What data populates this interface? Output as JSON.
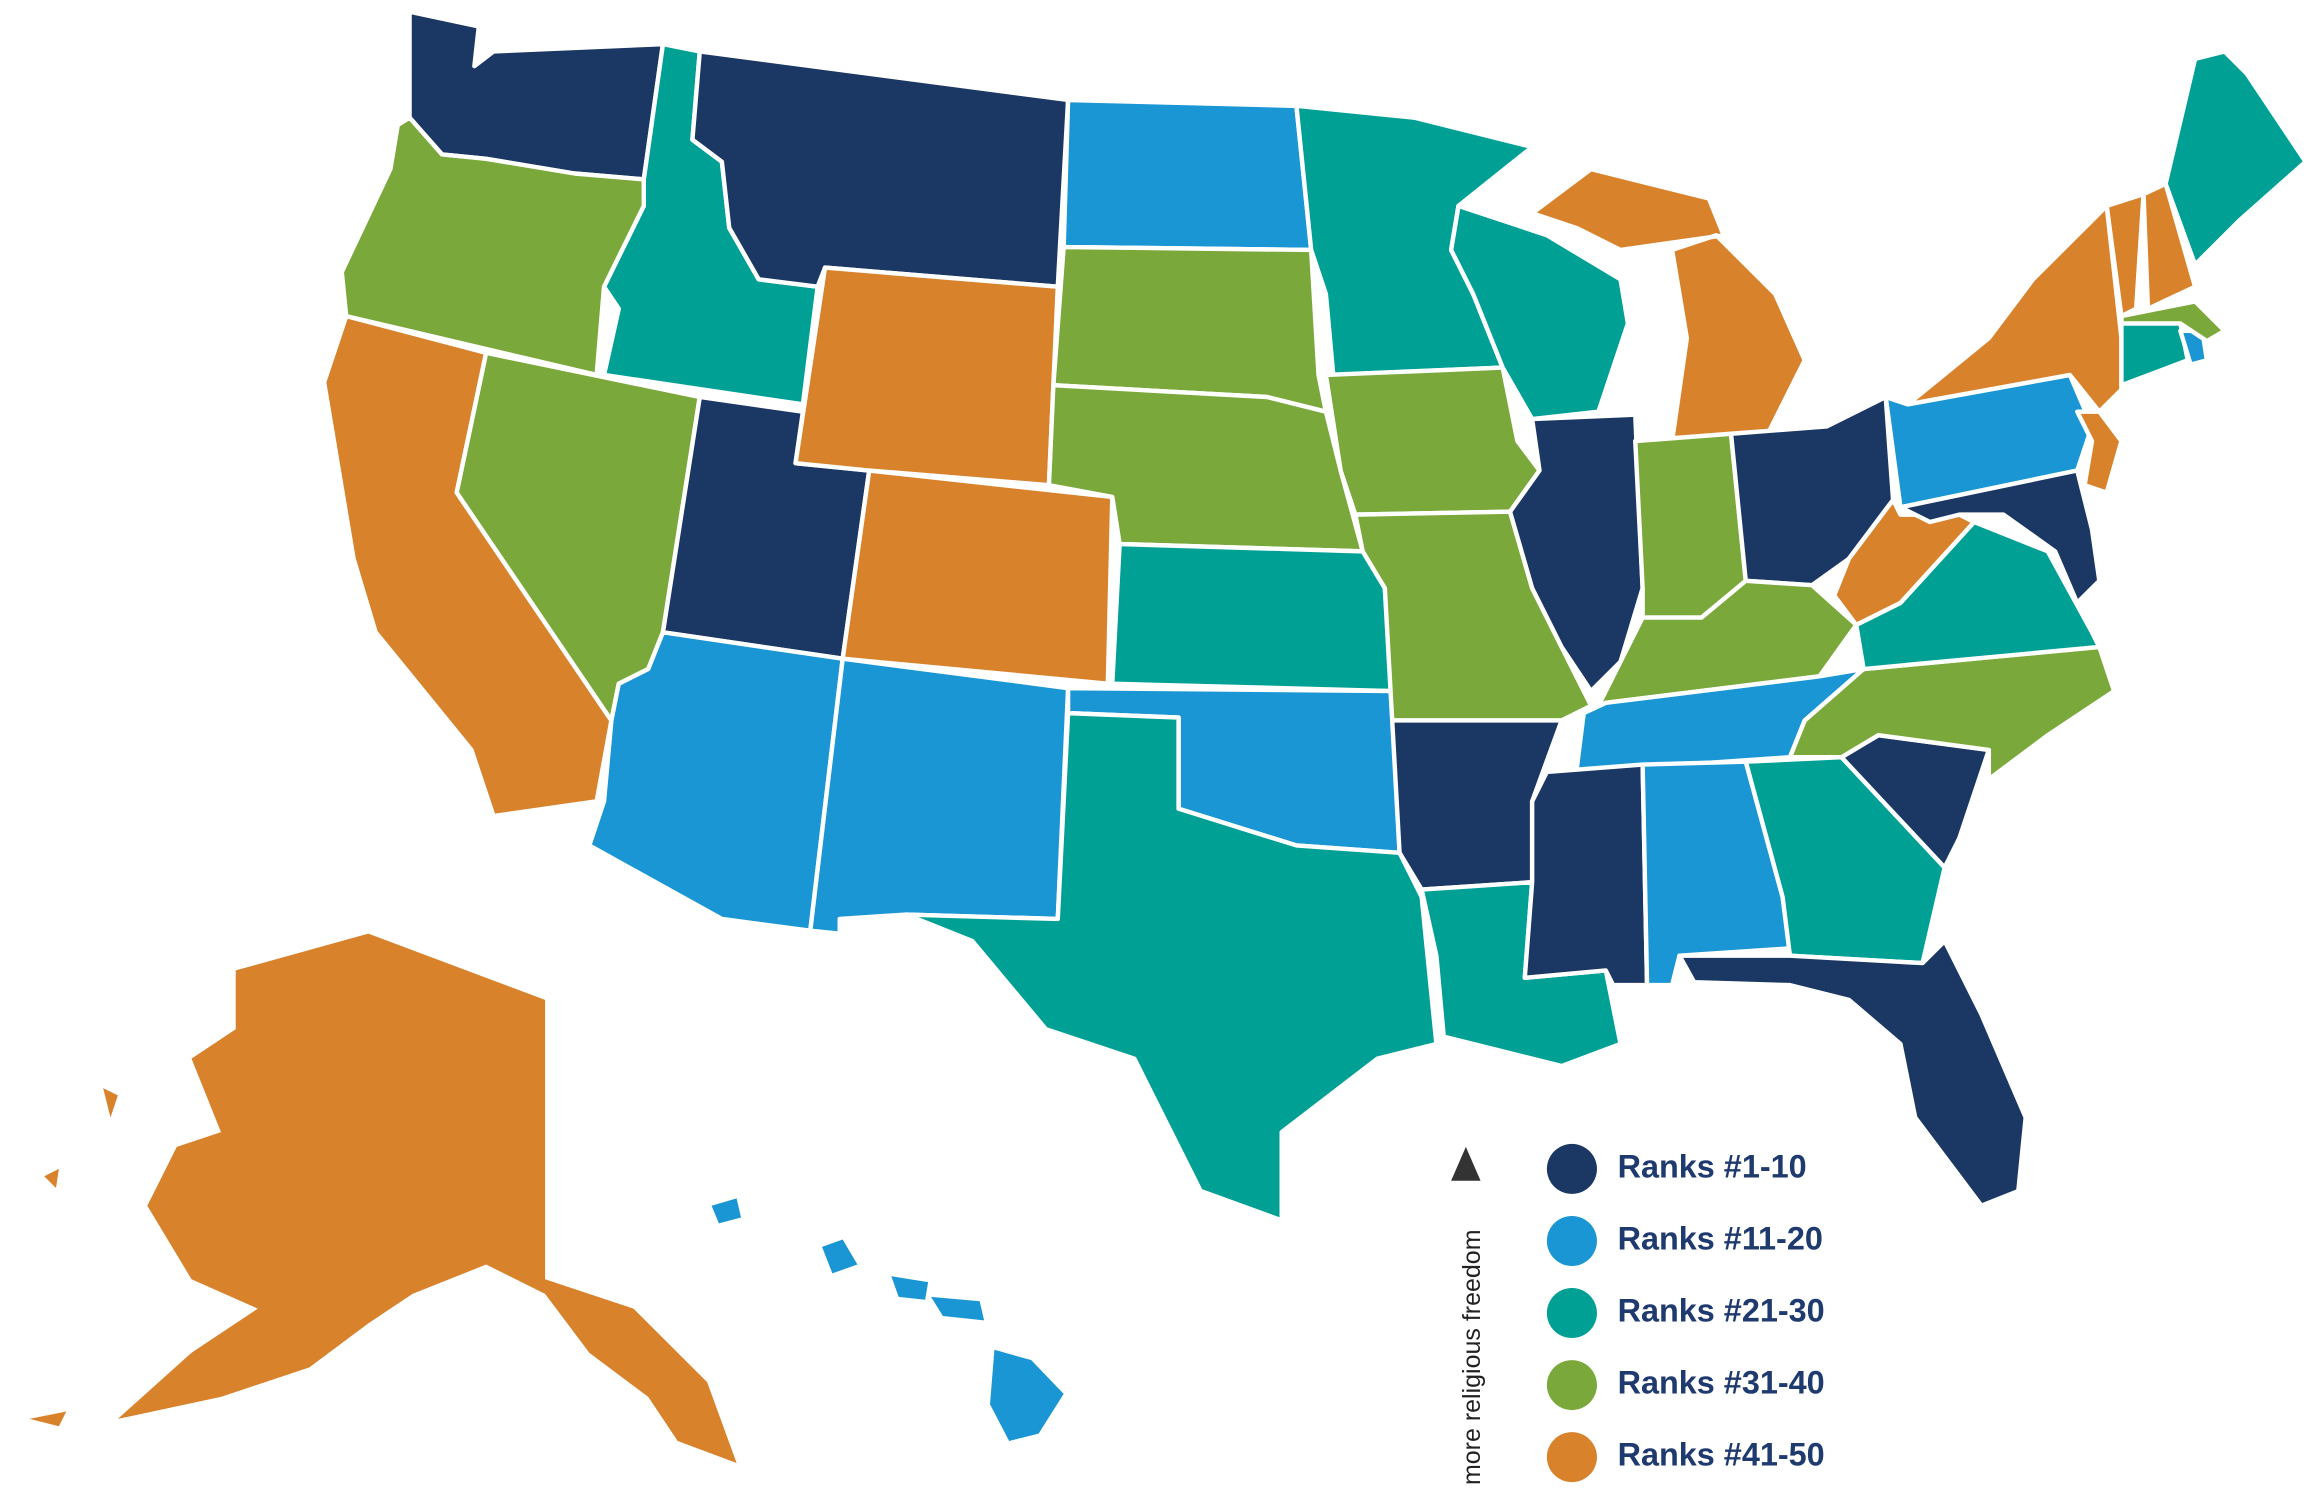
{
  "legend": {
    "items": [
      {
        "label": "Ranks #1-10",
        "color": "#1b3764"
      },
      {
        "label": "Ranks #11-20",
        "color": "#1a96d4"
      },
      {
        "label": "Ranks #21-30",
        "color": "#00a095"
      },
      {
        "label": "Ranks #31-40",
        "color": "#7ba83a"
      },
      {
        "label": "Ranks #41-50",
        "color": "#d8822c"
      }
    ]
  },
  "note": "more religious freedom"
}
